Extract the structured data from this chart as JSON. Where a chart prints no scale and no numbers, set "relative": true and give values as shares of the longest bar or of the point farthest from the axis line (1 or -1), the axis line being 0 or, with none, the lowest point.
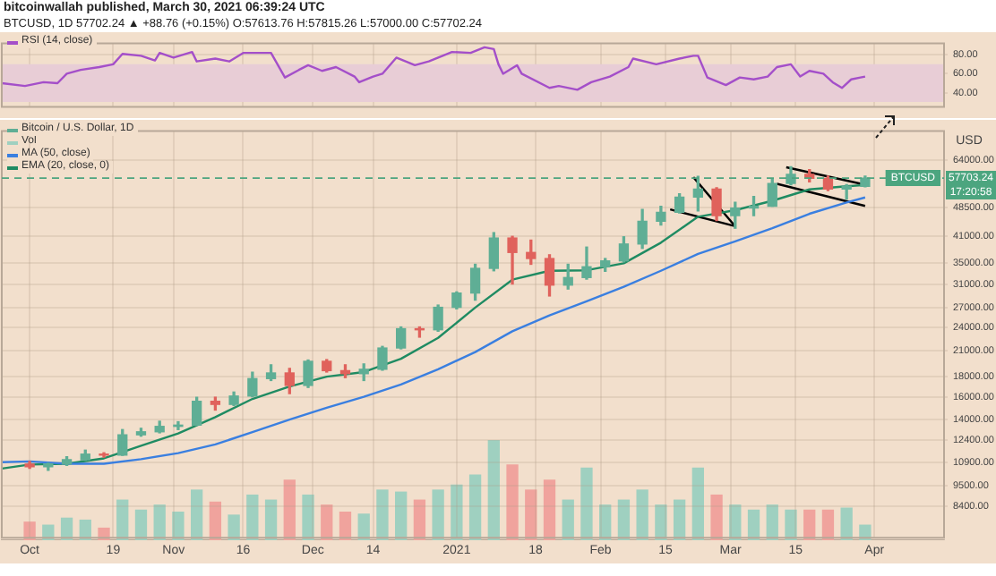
{
  "chart_data": [
    {
      "type": "line",
      "title": "bitcoinwallah published, March 30, 2021 06:39:24 UTC",
      "subtitle": "BTCUSD, 1D 57702.24 ▲ +88.76 (+0.15%) O:57613.76 H:57815.26 L:57000.00 C:57702.24",
      "legend": "top left",
      "grid": true,
      "tick_labels": "y",
      "xlim": [
        "2020-09-25",
        "2021-04-16"
      ],
      "xticks": [
        {
          "value": "2020-10-01",
          "label": null
        },
        {
          "value": "2020-10-19",
          "label": null
        },
        {
          "value": "2020-11-01",
          "label": null
        },
        {
          "value": "2020-11-16",
          "label": null
        },
        {
          "value": "2020-12-01",
          "label": null
        },
        {
          "value": "2020-12-14",
          "label": null
        },
        {
          "value": "2021-01-01",
          "label": null
        },
        {
          "value": "2021-01-18",
          "label": null
        },
        {
          "value": "2021-02-01",
          "label": null
        },
        {
          "value": "2021-02-15",
          "label": null
        },
        {
          "value": "2021-03-01",
          "label": null
        },
        {
          "value": "2021-03-15",
          "label": null
        },
        {
          "value": "2021-04-01",
          "label": null
        }
      ],
      "ylim": [
        25,
        92
      ],
      "yticks": [
        {
          "value": 40,
          "label": "40.00"
        },
        {
          "value": 60,
          "label": "60.00"
        },
        {
          "value": 80,
          "label": "80.00"
        }
      ],
      "bands": [
        {
          "axis": "y",
          "from": 30,
          "to": 70,
          "color": "#e8cdd6"
        }
      ],
      "series": [
        {
          "name": "RSI (14, close)",
          "color": "#a44fc9",
          "x": [
            "2020-09-25",
            "2020-09-30",
            "2020-10-04",
            "2020-10-07",
            "2020-10-09",
            "2020-10-12",
            "2020-10-16",
            "2020-10-19",
            "2020-10-21",
            "2020-10-25",
            "2020-10-28",
            "2020-10-29",
            "2020-11-01",
            "2020-11-05",
            "2020-11-06",
            "2020-11-10",
            "2020-11-13",
            "2020-11-16",
            "2020-11-20",
            "2020-11-22",
            "2020-11-25",
            "2020-11-28",
            "2020-11-30",
            "2020-12-03",
            "2020-12-06",
            "2020-12-10",
            "2020-12-11",
            "2020-12-14",
            "2020-12-16",
            "2020-12-19",
            "2020-12-23",
            "2020-12-26",
            "2020-12-31",
            "2021-01-04",
            "2021-01-07",
            "2021-01-09",
            "2021-01-10",
            "2021-01-11",
            "2021-01-14",
            "2021-01-15",
            "2021-01-21",
            "2021-01-23",
            "2021-01-27",
            "2021-01-30",
            "2021-02-03",
            "2021-02-07",
            "2021-02-08",
            "2021-02-13",
            "2021-02-18",
            "2021-02-21",
            "2021-02-22",
            "2021-02-24",
            "2021-02-28",
            "2021-03-03",
            "2021-03-06",
            "2021-03-09",
            "2021-03-11",
            "2021-03-14",
            "2021-03-16",
            "2021-03-18",
            "2021-03-21",
            "2021-03-23",
            "2021-03-25",
            "2021-03-27",
            "2021-03-29",
            "2021-03-30"
          ],
          "values": [
            50,
            47,
            51,
            50,
            60,
            64,
            67,
            70,
            81,
            79,
            74,
            82,
            77,
            83,
            73,
            76,
            73,
            82,
            82,
            82,
            56,
            64,
            69,
            63,
            67,
            57,
            51,
            57,
            60,
            77,
            69,
            73,
            83,
            82,
            88,
            86,
            70,
            60,
            69,
            60,
            45,
            47,
            43,
            51,
            57,
            67,
            76,
            70,
            76,
            79,
            79,
            56,
            48,
            56,
            54,
            57,
            67,
            70,
            57,
            63,
            60,
            51,
            45,
            54,
            56,
            57
          ]
        }
      ]
    },
    {
      "type": "candlestick",
      "ylabel": "USD",
      "legend": "top left",
      "grid": true,
      "log": true,
      "xlim": [
        "2020-09-25",
        "2021-04-16"
      ],
      "xticks": [
        {
          "value": "2020-10-01",
          "label": "Oct"
        },
        {
          "value": "2020-10-19",
          "label": "19"
        },
        {
          "value": "2020-11-01",
          "label": "Nov"
        },
        {
          "value": "2020-11-16",
          "label": "16"
        },
        {
          "value": "2020-12-01",
          "label": "Dec"
        },
        {
          "value": "2020-12-14",
          "label": "14"
        },
        {
          "value": "2021-01-01",
          "label": "2021"
        },
        {
          "value": "2021-01-18",
          "label": "18"
        },
        {
          "value": "2021-02-01",
          "label": "Feb"
        },
        {
          "value": "2021-02-15",
          "label": "15"
        },
        {
          "value": "2021-03-01",
          "label": "Mar"
        },
        {
          "value": "2021-03-15",
          "label": "15"
        },
        {
          "value": "2021-04-01",
          "label": "Apr"
        }
      ],
      "ylim": [
        7000,
        76000
      ],
      "yticks": [
        {
          "value": 8400,
          "label": "8400.00"
        },
        {
          "value": 9500,
          "label": "9500.00"
        },
        {
          "value": 10900,
          "label": "10900.00"
        },
        {
          "value": 12400,
          "label": "12400.00"
        },
        {
          "value": 14000,
          "label": "14000.00"
        },
        {
          "value": 16000,
          "label": "16000.00"
        },
        {
          "value": 18000,
          "label": "18000.00"
        },
        {
          "value": 21000,
          "label": "21000.00"
        },
        {
          "value": 24000,
          "label": "24000.00"
        },
        {
          "value": 27000,
          "label": "27000.00"
        },
        {
          "value": 31000,
          "label": "31000.00"
        },
        {
          "value": 35000,
          "label": "35000.00"
        },
        {
          "value": 41000,
          "label": "41000.00"
        },
        {
          "value": 48500,
          "label": "48500.00"
        },
        {
          "value": 64000,
          "label": "64000.00"
        }
      ],
      "ref_lines": [
        {
          "axis": "y",
          "value": 57703.24,
          "label": "BTCUSD",
          "color": "#4ca57f",
          "line_style": "dashed"
        }
      ],
      "annotations": [
        "57703.24",
        "17:20:58"
      ],
      "series": [
        {
          "name": "Bitcoin / U.S. Dollar, 1D",
          "x": [
            "2020-10-01",
            "2020-10-05",
            "2020-10-09",
            "2020-10-13",
            "2020-10-17",
            "2020-10-21",
            "2020-10-25",
            "2020-10-29",
            "2020-11-02",
            "2020-11-06",
            "2020-11-10",
            "2020-11-14",
            "2020-11-18",
            "2020-11-22",
            "2020-11-26",
            "2020-11-30",
            "2020-12-04",
            "2020-12-08",
            "2020-12-12",
            "2020-12-16",
            "2020-12-20",
            "2020-12-24",
            "2020-12-28",
            "2021-01-01",
            "2021-01-05",
            "2021-01-09",
            "2021-01-13",
            "2021-01-17",
            "2021-01-21",
            "2021-01-25",
            "2021-01-29",
            "2021-02-02",
            "2021-02-06",
            "2021-02-10",
            "2021-02-14",
            "2021-02-18",
            "2021-02-22",
            "2021-02-26",
            "2021-03-02",
            "2021-03-06",
            "2021-03-10",
            "2021-03-14",
            "2021-03-18",
            "2021-03-22",
            "2021-03-26",
            "2021-03-30"
          ],
          "ohlc": [
            [
              10780,
              10950,
              10520,
              10620
            ],
            [
              10620,
              10830,
              10400,
              10790
            ],
            [
              10790,
              11250,
              10700,
              11060
            ],
            [
              11060,
              11700,
              11020,
              11430
            ],
            [
              11430,
              11520,
              11230,
              11360
            ],
            [
              11360,
              13200,
              11350,
              12800
            ],
            [
              12800,
              13300,
              12700,
              13030
            ],
            [
              13030,
              13860,
              12950,
              13450
            ],
            [
              13450,
              13820,
              13200,
              13550
            ],
            [
              13550,
              15950,
              13530,
              15580
            ],
            [
              15580,
              15960,
              14800,
              15300
            ],
            [
              15300,
              16450,
              15200,
              16070
            ],
            [
              16070,
              18480,
              16000,
              17800
            ],
            [
              17800,
              19300,
              17600,
              18400
            ],
            [
              18400,
              18900,
              16300,
              17100
            ],
            [
              17100,
              19850,
              16900,
              19700
            ],
            [
              19700,
              19900,
              18500,
              18650
            ],
            [
              18650,
              19300,
              17900,
              18320
            ],
            [
              18320,
              19400,
              17600,
              18800
            ],
            [
              18800,
              21500,
              18700,
              21300
            ],
            [
              21300,
              24100,
              21200,
              23850
            ],
            [
              23850,
              24100,
              22700,
              23700
            ],
            [
              23700,
              27400,
              23500,
              27040
            ],
            [
              27040,
              29600,
              26800,
              29400
            ],
            [
              29400,
              34800,
              28200,
              33980
            ],
            [
              33980,
              41900,
              33500,
              40600
            ],
            [
              40600,
              41000,
              31000,
              37300
            ],
            [
              37300,
              40100,
              34800,
              36000
            ],
            [
              36000,
              36800,
              28900,
              30800
            ],
            [
              30800,
              34800,
              30100,
              32200
            ],
            [
              32200,
              38500,
              31900,
              34300
            ],
            [
              34300,
              36000,
              33400,
              35500
            ],
            [
              35500,
              40900,
              35300,
              39200
            ],
            [
              39200,
              48000,
              38200,
              44800
            ],
            [
              44800,
              48900,
              43800,
              47200
            ],
            [
              47200,
              52600,
              47000,
              51600
            ],
            [
              51600,
              58300,
              47600,
              54100
            ],
            [
              54100,
              54500,
              45000,
              46300
            ],
            [
              46300,
              50100,
              43000,
              48400
            ],
            [
              48400,
              51800,
              46300,
              48900
            ],
            [
              48900,
              57300,
              48900,
              55900
            ],
            [
              55900,
              61700,
              55500,
              59000
            ],
            [
              59000,
              60600,
              56400,
              57600
            ],
            [
              57600,
              58400,
              53600,
              54100
            ],
            [
              54100,
              55500,
              51000,
              55000
            ],
            [
              55000,
              58400,
              54800,
              57702
            ]
          ],
          "colors": [
            "#e0625c",
            "#5fae95",
            "#5fae95",
            "#5fae95",
            "#e0625c",
            "#5fae95",
            "#5fae95",
            "#5fae95",
            "#5fae95",
            "#5fae95",
            "#e0625c",
            "#5fae95",
            "#5fae95",
            "#5fae95",
            "#e0625c",
            "#5fae95",
            "#e0625c",
            "#e0625c",
            "#5fae95",
            "#5fae95",
            "#5fae95",
            "#e0625c",
            "#5fae95",
            "#5fae95",
            "#5fae95",
            "#5fae95",
            "#e0625c",
            "#e0625c",
            "#e0625c",
            "#5fae95",
            "#5fae95",
            "#5fae95",
            "#5fae95",
            "#5fae95",
            "#5fae95",
            "#5fae95",
            "#5fae95",
            "#e0625c",
            "#5fae95",
            "#5fae95",
            "#5fae95",
            "#5fae95",
            "#e0625c",
            "#e0625c",
            "#5fae95",
            "#5fae95"
          ]
        },
        {
          "name": "MA (50, close)",
          "type": "line",
          "color": "#3a7fe0",
          "x": [
            "2020-09-25",
            "2020-10-01",
            "2020-10-09",
            "2020-10-17",
            "2020-10-25",
            "2020-11-02",
            "2020-11-10",
            "2020-11-18",
            "2020-11-26",
            "2020-12-04",
            "2020-12-12",
            "2020-12-20",
            "2020-12-28",
            "2021-01-05",
            "2021-01-13",
            "2021-01-21",
            "2021-01-29",
            "2021-02-06",
            "2021-02-14",
            "2021-02-22",
            "2021-03-02",
            "2021-03-10",
            "2021-03-18",
            "2021-03-26",
            "2021-03-30"
          ],
          "values": [
            10900,
            10950,
            10800,
            10800,
            11100,
            11500,
            12100,
            13000,
            14000,
            15000,
            16000,
            17200,
            18800,
            20800,
            23500,
            25800,
            28000,
            30500,
            33500,
            37000,
            39800,
            43000,
            46800,
            50000,
            51500
          ]
        },
        {
          "name": "EMA (20, close, 0)",
          "type": "line",
          "color": "#1f8b62",
          "x": [
            "2020-09-25",
            "2020-10-01",
            "2020-10-09",
            "2020-10-17",
            "2020-10-25",
            "2020-11-02",
            "2020-11-10",
            "2020-11-18",
            "2020-11-26",
            "2020-12-04",
            "2020-12-12",
            "2020-12-20",
            "2020-12-28",
            "2021-01-05",
            "2021-01-13",
            "2021-01-21",
            "2021-01-29",
            "2021-02-06",
            "2021-02-14",
            "2021-02-22",
            "2021-03-02",
            "2021-03-10",
            "2021-03-18",
            "2021-03-26",
            "2021-03-30"
          ],
          "values": [
            10500,
            10750,
            10800,
            11150,
            12000,
            12900,
            14200,
            15800,
            17000,
            18000,
            18500,
            20000,
            22600,
            27000,
            31800,
            33500,
            33600,
            35000,
            39500,
            46000,
            47800,
            50500,
            54000,
            55000,
            55400
          ]
        },
        {
          "type": "line",
          "color": "#000000",
          "x": [
            "2021-02-21",
            "2021-03-02"
          ],
          "values": [
            58000,
            43500
          ]
        },
        {
          "type": "line",
          "color": "#000000",
          "x": [
            "2021-02-16",
            "2021-03-02"
          ],
          "values": [
            48000,
            43500
          ]
        },
        {
          "type": "line",
          "color": "#000000",
          "x": [
            "2021-03-13",
            "2021-03-30"
          ],
          "values": [
            61500,
            55500
          ]
        },
        {
          "type": "line",
          "color": "#000000",
          "x": [
            "2021-03-11",
            "2021-03-30"
          ],
          "values": [
            55800,
            49000
          ]
        }
      ]
    },
    {
      "type": "bar",
      "relative": true,
      "legend": "top left",
      "tick_labels": false,
      "xlim": [
        "2020-09-25",
        "2021-04-16"
      ],
      "xticks": [
        {
          "value": "2020-10-01",
          "label": null
        },
        {
          "value": "2020-10-19",
          "label": null
        },
        {
          "value": "2020-11-01",
          "label": null
        },
        {
          "value": "2020-11-16",
          "label": null
        },
        {
          "value": "2020-12-01",
          "label": null
        },
        {
          "value": "2020-12-14",
          "label": null
        },
        {
          "value": "2021-01-01",
          "label": null
        },
        {
          "value": "2021-01-18",
          "label": null
        },
        {
          "value": "2021-02-01",
          "label": null
        },
        {
          "value": "2021-02-15",
          "label": null
        },
        {
          "value": "2021-03-01",
          "label": null
        },
        {
          "value": "2021-03-15",
          "label": null
        },
        {
          "value": "2021-04-01",
          "label": null
        }
      ],
      "series": [
        {
          "name": "Vol",
          "x": [
            "2020-10-01",
            "2020-10-05",
            "2020-10-09",
            "2020-10-13",
            "2020-10-17",
            "2020-10-21",
            "2020-10-25",
            "2020-10-29",
            "2020-11-02",
            "2020-11-06",
            "2020-11-10",
            "2020-11-14",
            "2020-11-18",
            "2020-11-22",
            "2020-11-26",
            "2020-11-30",
            "2020-12-04",
            "2020-12-08",
            "2020-12-12",
            "2020-12-16",
            "2020-12-20",
            "2020-12-24",
            "2020-12-28",
            "2021-01-01",
            "2021-01-05",
            "2021-01-09",
            "2021-01-13",
            "2021-01-17",
            "2021-01-21",
            "2021-01-25",
            "2021-01-29",
            "2021-02-02",
            "2021-02-06",
            "2021-02-10",
            "2021-02-14",
            "2021-02-18",
            "2021-02-22",
            "2021-02-26",
            "2021-03-02",
            "2021-03-06",
            "2021-03-10",
            "2021-03-14",
            "2021-03-18",
            "2021-03-22",
            "2021-03-26",
            "2021-03-30"
          ],
          "values": [
            0.18,
            0.15,
            0.22,
            0.2,
            0.12,
            0.4,
            0.3,
            0.35,
            0.28,
            0.5,
            0.38,
            0.25,
            0.45,
            0.4,
            0.6,
            0.45,
            0.35,
            0.28,
            0.26,
            0.5,
            0.48,
            0.4,
            0.5,
            0.55,
            0.65,
            1,
            0.75,
            0.5,
            0.6,
            0.4,
            0.72,
            0.35,
            0.4,
            0.5,
            0.35,
            0.4,
            0.72,
            0.45,
            0.35,
            0.3,
            0.35,
            0.3,
            0.3,
            0.3,
            0.32,
            0.15
          ],
          "colors": [
            "#f0a39d",
            "#9fd0c0",
            "#9fd0c0",
            "#9fd0c0",
            "#f0a39d",
            "#9fd0c0",
            "#9fd0c0",
            "#9fd0c0",
            "#9fd0c0",
            "#9fd0c0",
            "#f0a39d",
            "#9fd0c0",
            "#9fd0c0",
            "#9fd0c0",
            "#f0a39d",
            "#9fd0c0",
            "#f0a39d",
            "#f0a39d",
            "#9fd0c0",
            "#9fd0c0",
            "#9fd0c0",
            "#f0a39d",
            "#9fd0c0",
            "#9fd0c0",
            "#9fd0c0",
            "#9fd0c0",
            "#f0a39d",
            "#f0a39d",
            "#f0a39d",
            "#9fd0c0",
            "#9fd0c0",
            "#9fd0c0",
            "#9fd0c0",
            "#9fd0c0",
            "#9fd0c0",
            "#9fd0c0",
            "#9fd0c0",
            "#f0a39d",
            "#9fd0c0",
            "#9fd0c0",
            "#9fd0c0",
            "#9fd0c0",
            "#f0a39d",
            "#f0a39d",
            "#9fd0c0",
            "#9fd0c0"
          ]
        }
      ]
    }
  ]
}
